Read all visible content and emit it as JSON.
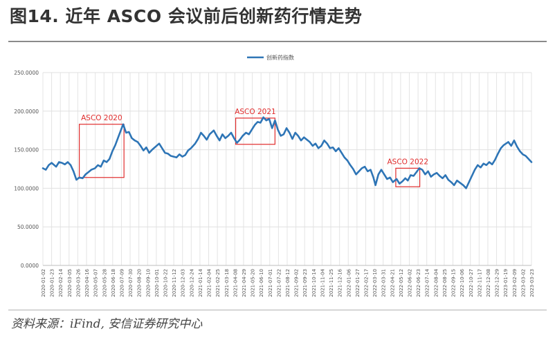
{
  "figure": {
    "title": "图14. 近年 ASCO 会议前后创新药行情走势",
    "source": "资料来源：iFind, 安信证券研究中心"
  },
  "chart_data": {
    "type": "line",
    "series": [
      {
        "name": "创新药指数",
        "color": "#2e75b6",
        "points": [
          [
            "2020-01-02",
            126
          ],
          [
            "2020-01-09",
            124
          ],
          [
            "2020-01-16",
            130
          ],
          [
            "2020-01-23",
            133
          ],
          [
            "2020-02-03",
            128
          ],
          [
            "2020-02-10",
            134
          ],
          [
            "2020-02-17",
            133
          ],
          [
            "2020-02-24",
            131
          ],
          [
            "2020-03-02",
            134
          ],
          [
            "2020-03-09",
            130
          ],
          [
            "2020-03-16",
            122
          ],
          [
            "2020-03-23",
            111
          ],
          [
            "2020-03-30",
            114
          ],
          [
            "2020-04-07",
            113
          ],
          [
            "2020-04-14",
            118
          ],
          [
            "2020-04-21",
            121
          ],
          [
            "2020-04-28",
            124
          ],
          [
            "2020-05-07",
            126
          ],
          [
            "2020-05-14",
            130
          ],
          [
            "2020-05-21",
            128
          ],
          [
            "2020-05-28",
            136
          ],
          [
            "2020-06-04",
            134
          ],
          [
            "2020-06-11",
            138
          ],
          [
            "2020-06-18",
            148
          ],
          [
            "2020-06-25",
            156
          ],
          [
            "2020-07-02",
            166
          ],
          [
            "2020-07-09",
            176
          ],
          [
            "2020-07-14",
            183
          ],
          [
            "2020-07-21",
            172
          ],
          [
            "2020-07-28",
            173
          ],
          [
            "2020-08-04",
            165
          ],
          [
            "2020-08-11",
            162
          ],
          [
            "2020-08-18",
            160
          ],
          [
            "2020-08-25",
            155
          ],
          [
            "2020-09-01",
            149
          ],
          [
            "2020-09-08",
            153
          ],
          [
            "2020-09-15",
            146
          ],
          [
            "2020-09-22",
            150
          ],
          [
            "2020-10-09",
            158
          ],
          [
            "2020-10-16",
            152
          ],
          [
            "2020-10-23",
            146
          ],
          [
            "2020-10-30",
            145
          ],
          [
            "2020-11-06",
            142
          ],
          [
            "2020-11-13",
            141
          ],
          [
            "2020-11-20",
            140
          ],
          [
            "2020-11-27",
            144
          ],
          [
            "2020-12-04",
            141
          ],
          [
            "2020-12-11",
            143
          ],
          [
            "2020-12-18",
            149
          ],
          [
            "2020-12-25",
            152
          ],
          [
            "2021-01-04",
            158
          ],
          [
            "2021-01-11",
            164
          ],
          [
            "2021-01-18",
            172
          ],
          [
            "2021-01-25",
            168
          ],
          [
            "2021-02-01",
            163
          ],
          [
            "2021-02-08",
            170
          ],
          [
            "2021-02-18",
            175
          ],
          [
            "2021-02-25",
            168
          ],
          [
            "2021-03-04",
            162
          ],
          [
            "2021-03-11",
            170
          ],
          [
            "2021-03-18",
            165
          ],
          [
            "2021-03-25",
            168
          ],
          [
            "2021-04-01",
            172
          ],
          [
            "2021-04-08",
            165
          ],
          [
            "2021-04-15",
            159
          ],
          [
            "2021-04-22",
            163
          ],
          [
            "2021-04-29",
            168
          ],
          [
            "2021-05-07",
            172
          ],
          [
            "2021-05-14",
            170
          ],
          [
            "2021-05-21",
            176
          ],
          [
            "2021-05-28",
            182
          ],
          [
            "2021-06-04",
            186
          ],
          [
            "2021-06-11",
            185
          ],
          [
            "2021-06-18",
            192
          ],
          [
            "2021-06-25",
            188
          ],
          [
            "2021-07-02",
            190
          ],
          [
            "2021-07-09",
            178
          ],
          [
            "2021-07-16",
            188
          ],
          [
            "2021-07-23",
            176
          ],
          [
            "2021-07-30",
            168
          ],
          [
            "2021-08-06",
            170
          ],
          [
            "2021-08-13",
            178
          ],
          [
            "2021-08-20",
            172
          ],
          [
            "2021-08-27",
            164
          ],
          [
            "2021-09-03",
            172
          ],
          [
            "2021-09-10",
            168
          ],
          [
            "2021-09-17",
            162
          ],
          [
            "2021-09-24",
            166
          ],
          [
            "2021-10-08",
            160
          ],
          [
            "2021-10-15",
            155
          ],
          [
            "2021-10-22",
            158
          ],
          [
            "2021-10-29",
            152
          ],
          [
            "2021-11-05",
            155
          ],
          [
            "2021-11-12",
            162
          ],
          [
            "2021-11-19",
            158
          ],
          [
            "2021-11-26",
            152
          ],
          [
            "2021-12-03",
            153
          ],
          [
            "2021-12-10",
            148
          ],
          [
            "2021-12-17",
            152
          ],
          [
            "2021-12-24",
            146
          ],
          [
            "2021-12-31",
            140
          ],
          [
            "2022-01-07",
            136
          ],
          [
            "2022-01-14",
            130
          ],
          [
            "2022-01-21",
            125
          ],
          [
            "2022-01-28",
            118
          ],
          [
            "2022-02-11",
            126
          ],
          [
            "2022-02-18",
            128
          ],
          [
            "2022-02-25",
            122
          ],
          [
            "2022-03-04",
            124
          ],
          [
            "2022-03-11",
            114
          ],
          [
            "2022-03-16",
            104
          ],
          [
            "2022-03-23",
            118
          ],
          [
            "2022-03-30",
            124
          ],
          [
            "2022-04-06",
            118
          ],
          [
            "2022-04-13",
            112
          ],
          [
            "2022-04-20",
            114
          ],
          [
            "2022-04-27",
            108
          ],
          [
            "2022-05-06",
            112
          ],
          [
            "2022-05-13",
            106
          ],
          [
            "2022-05-20",
            109
          ],
          [
            "2022-05-27",
            113
          ],
          [
            "2022-06-02",
            110
          ],
          [
            "2022-06-09",
            117
          ],
          [
            "2022-06-16",
            116
          ],
          [
            "2022-06-23",
            121
          ],
          [
            "2022-06-30",
            126
          ],
          [
            "2022-07-07",
            124
          ],
          [
            "2022-07-14",
            118
          ],
          [
            "2022-07-21",
            122
          ],
          [
            "2022-07-28",
            115
          ],
          [
            "2022-08-04",
            118
          ],
          [
            "2022-08-11",
            120
          ],
          [
            "2022-08-18",
            116
          ],
          [
            "2022-08-25",
            113
          ],
          [
            "2022-09-01",
            117
          ],
          [
            "2022-09-08",
            111
          ],
          [
            "2022-09-15",
            108
          ],
          [
            "2022-09-22",
            104
          ],
          [
            "2022-09-29",
            110
          ],
          [
            "2022-10-14",
            104
          ],
          [
            "2022-10-21",
            100
          ],
          [
            "2022-10-28",
            108
          ],
          [
            "2022-11-04",
            116
          ],
          [
            "2022-11-11",
            124
          ],
          [
            "2022-11-18",
            130
          ],
          [
            "2022-11-25",
            127
          ],
          [
            "2022-12-02",
            132
          ],
          [
            "2022-12-09",
            130
          ],
          [
            "2022-12-16",
            134
          ],
          [
            "2022-12-23",
            131
          ],
          [
            "2022-12-30",
            137
          ],
          [
            "2023-01-06",
            145
          ],
          [
            "2023-01-13",
            152
          ],
          [
            "2023-01-20",
            156
          ],
          [
            "2023-01-31",
            160
          ],
          [
            "2023-02-07",
            155
          ],
          [
            "2023-02-14",
            162
          ],
          [
            "2023-02-21",
            154
          ],
          [
            "2023-02-28",
            148
          ],
          [
            "2023-03-07",
            144
          ],
          [
            "2023-03-14",
            142
          ],
          [
            "2023-03-21",
            138
          ],
          [
            "2023-03-28",
            134
          ]
        ]
      }
    ],
    "ylim": [
      0,
      250
    ],
    "y_ticks": [
      "0.0000",
      "50.0000",
      "100.0000",
      "150.0000",
      "200.0000",
      "250.0000"
    ],
    "x_tick_labels": [
      "2020-01-02",
      "2020-01-23",
      "2020-02-14",
      "2020-03-05",
      "2020-03-26",
      "2020-04-16",
      "2020-05-07",
      "2020-05-28",
      "2020-06-18",
      "2020-07-09",
      "2020-07-30",
      "2020-08-20",
      "2020-09-10",
      "2020-10-01",
      "2020-10-22",
      "2020-11-12",
      "2020-12-03",
      "2020-12-24",
      "2021-01-14",
      "2021-02-04",
      "2021-02-25",
      "2021-03-18",
      "2021-04-08",
      "2021-04-29",
      "2021-05-20",
      "2021-06-10",
      "2021-07-01",
      "2021-07-22",
      "2021-08-12",
      "2021-09-02",
      "2021-09-23",
      "2021-10-14",
      "2021-11-04",
      "2021-11-25",
      "2021-12-16",
      "2022-01-06",
      "2022-01-27",
      "2022-02-17",
      "2022-03-10",
      "2022-03-31",
      "2022-04-21",
      "2022-05-12",
      "2022-06-02",
      "2022-06-23",
      "2022-07-14",
      "2022-08-04",
      "2022-08-25",
      "2022-09-15",
      "2022-10-06",
      "2022-10-27",
      "2022-11-17",
      "2022-12-08",
      "2022-12-29",
      "2023-01-19",
      "2023-02-09",
      "2023-03-02",
      "2023-03-23"
    ],
    "x_range": [
      "2020-01-02",
      "2023-03-28"
    ],
    "grid": true,
    "legend": "top-center",
    "annotations": [
      {
        "label": "ASCO 2020",
        "x_start": "2020-03-30",
        "x_end": "2020-07-16",
        "y_low": 114,
        "y_high": 183,
        "color": "#e02b2b"
      },
      {
        "label": "ASCO 2021",
        "x_start": "2021-04-12",
        "x_end": "2021-07-16",
        "y_low": 157,
        "y_high": 191,
        "color": "#e02b2b"
      },
      {
        "label": "ASCO 2022",
        "x_start": "2022-05-04",
        "x_end": "2022-07-01",
        "y_low": 102,
        "y_high": 126,
        "color": "#e02b2b"
      }
    ]
  }
}
